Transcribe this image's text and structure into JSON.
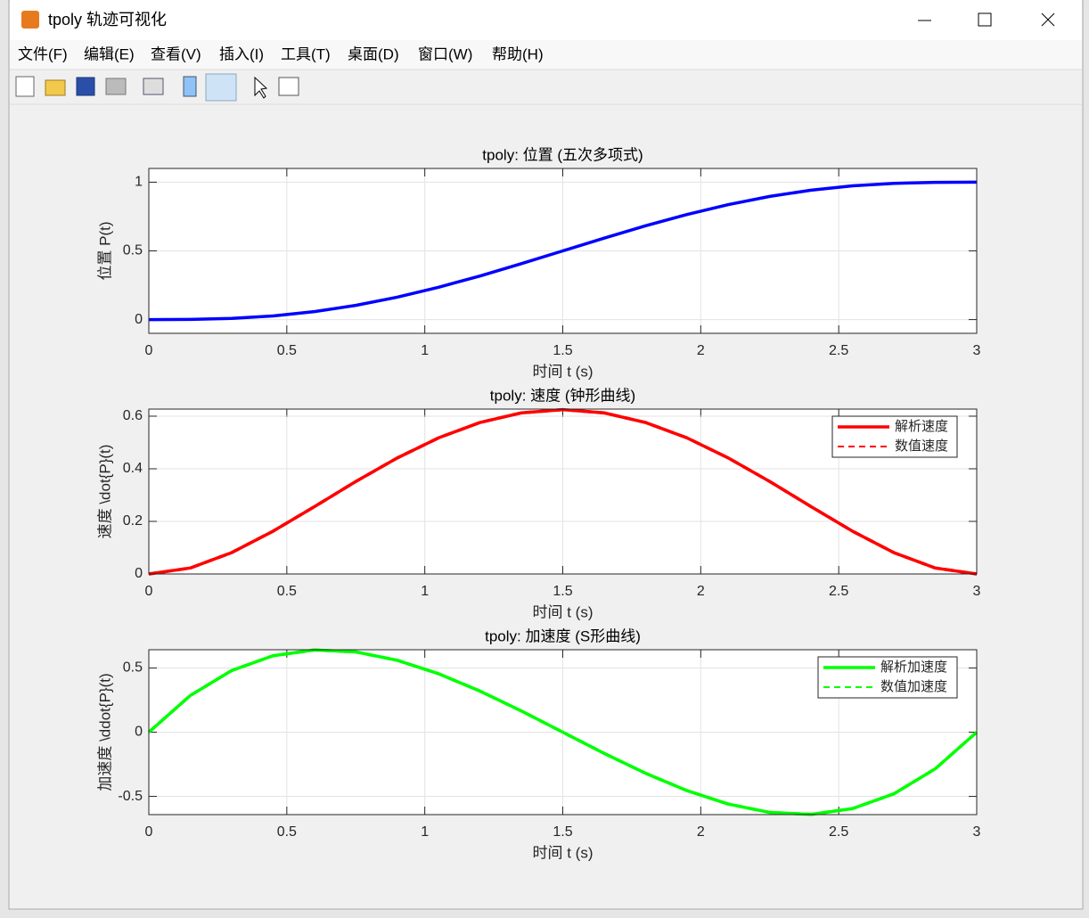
{
  "window": {
    "title": "tpoly 轨迹可视化",
    "menu": [
      "文件(F)",
      "编辑(E)",
      "查看(V)",
      "插入(I)",
      "工具(T)",
      "桌面(D)",
      "窗口(W)",
      "帮助(H)"
    ]
  },
  "chart_data": [
    {
      "type": "line",
      "title": "tpoly: 位置 (五次多项式)",
      "xlabel": "时间 t (s)",
      "ylabel": "位置 P(t)",
      "x": [
        0,
        0.15,
        0.3,
        0.45,
        0.6,
        0.75,
        0.9,
        1.05,
        1.2,
        1.35,
        1.5,
        1.65,
        1.8,
        1.95,
        2.1,
        2.25,
        2.4,
        2.55,
        2.7,
        2.85,
        3
      ],
      "series": [
        {
          "color": "#0000ff",
          "values": [
            0,
            0.0012,
            0.0086,
            0.0266,
            0.0579,
            0.1035,
            0.1631,
            0.2352,
            0.3174,
            0.4069,
            0.5,
            0.5931,
            0.6826,
            0.7648,
            0.8369,
            0.8965,
            0.9421,
            0.9734,
            0.9914,
            0.9988,
            1
          ]
        }
      ],
      "xlim": [
        0,
        3
      ],
      "ylim": [
        -0.1,
        1.1
      ],
      "xticks": [
        0,
        0.5,
        1,
        1.5,
        2,
        2.5,
        3
      ],
      "yticks": [
        0,
        0.5,
        1
      ],
      "grid": true
    },
    {
      "type": "line",
      "title": "tpoly: 速度 (钟形曲线)",
      "xlabel": "时间 t (s)",
      "ylabel": "速度 \\dot{P}(t)",
      "x": [
        0,
        0.15,
        0.3,
        0.45,
        0.6,
        0.75,
        0.9,
        1.05,
        1.2,
        1.35,
        1.5,
        1.65,
        1.8,
        1.95,
        2.1,
        2.25,
        2.4,
        2.55,
        2.7,
        2.85,
        3
      ],
      "series": [
        {
          "name": "解析速度",
          "color": "#ff0000",
          "dash": "solid",
          "values": [
            0,
            0.0226,
            0.081,
            0.1626,
            0.256,
            0.3516,
            0.441,
            0.5176,
            0.576,
            0.6126,
            0.625,
            0.6126,
            0.576,
            0.5176,
            0.441,
            0.3516,
            0.256,
            0.1626,
            0.081,
            0.0226,
            0
          ]
        },
        {
          "name": "数值速度",
          "color": "#ff0000",
          "dash": "dashed",
          "values": [
            0,
            0.0226,
            0.081,
            0.1626,
            0.256,
            0.3516,
            0.441,
            0.5176,
            0.576,
            0.6126,
            0.625,
            0.6126,
            0.576,
            0.5176,
            0.441,
            0.3516,
            0.256,
            0.1626,
            0.081,
            0.0226,
            0
          ]
        }
      ],
      "xlim": [
        0,
        3
      ],
      "ylim": [
        0,
        0.627
      ],
      "xticks": [
        0,
        0.5,
        1,
        1.5,
        2,
        2.5,
        3
      ],
      "yticks": [
        0,
        0.2,
        0.4,
        0.6
      ],
      "grid": true,
      "legend": "upper right"
    },
    {
      "type": "line",
      "title": "tpoly: 加速度 (S形曲线)",
      "xlabel": "时间 t (s)",
      "ylabel": "加速度 \\ddot{P}(t)",
      "x": [
        0,
        0.15,
        0.3,
        0.45,
        0.6,
        0.75,
        0.9,
        1.05,
        1.2,
        1.35,
        1.5,
        1.65,
        1.8,
        1.95,
        2.1,
        2.25,
        2.4,
        2.55,
        2.7,
        2.85,
        3
      ],
      "series": [
        {
          "name": "解析加速度",
          "color": "#00ff00",
          "dash": "solid",
          "values": [
            0,
            0.285,
            0.48,
            0.595,
            0.64,
            0.625,
            0.56,
            0.455,
            0.32,
            0.165,
            0,
            -0.165,
            -0.32,
            -0.455,
            -0.56,
            -0.625,
            -0.64,
            -0.595,
            -0.48,
            -0.285,
            0
          ]
        },
        {
          "name": "数值加速度",
          "color": "#00ff00",
          "dash": "dashed",
          "values": [
            0,
            0.285,
            0.48,
            0.595,
            0.64,
            0.625,
            0.56,
            0.455,
            0.32,
            0.165,
            0,
            -0.165,
            -0.32,
            -0.455,
            -0.56,
            -0.625,
            -0.64,
            -0.595,
            -0.48,
            -0.285,
            0
          ]
        }
      ],
      "xlim": [
        0,
        3
      ],
      "ylim": [
        -0.642,
        0.642
      ],
      "xticks": [
        0,
        0.5,
        1,
        1.5,
        2,
        2.5,
        3
      ],
      "yticks": [
        -0.5,
        0,
        0.5
      ],
      "grid": true,
      "legend": "upper right"
    }
  ]
}
